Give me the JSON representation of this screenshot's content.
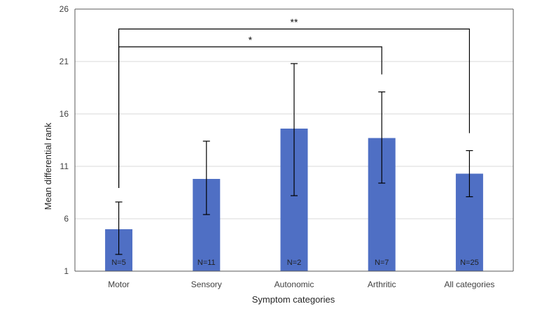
{
  "chart_data": {
    "type": "bar",
    "title": "",
    "xlabel": "Symptom categories",
    "ylabel": "Mean differential rank",
    "ylim": [
      1,
      26
    ],
    "yticks": [
      1,
      6,
      11,
      16,
      21,
      26
    ],
    "ytick_labels": [
      "1",
      "6",
      "11",
      "16",
      "21",
      "26"
    ],
    "grid": true,
    "legend": "none",
    "categories": [
      "Motor",
      "Sensory",
      "Autonomic",
      "Arthritic",
      "All categories"
    ],
    "values": [
      5.0,
      9.8,
      14.6,
      13.7,
      10.3
    ],
    "error_low": [
      2.6,
      6.4,
      8.2,
      9.4,
      8.1
    ],
    "error_high": [
      7.6,
      13.4,
      20.8,
      18.1,
      12.5
    ],
    "n_labels": [
      "N=5",
      "N=11",
      "N=2",
      "N=7",
      "N=25"
    ],
    "bar_color": "#4f6fc4",
    "significance": [
      {
        "from": "Motor",
        "to": "Arthritic",
        "label": "*",
        "y": 22.4
      },
      {
        "from": "Motor",
        "to": "All categories",
        "label": "**",
        "y": 24.1
      }
    ]
  }
}
